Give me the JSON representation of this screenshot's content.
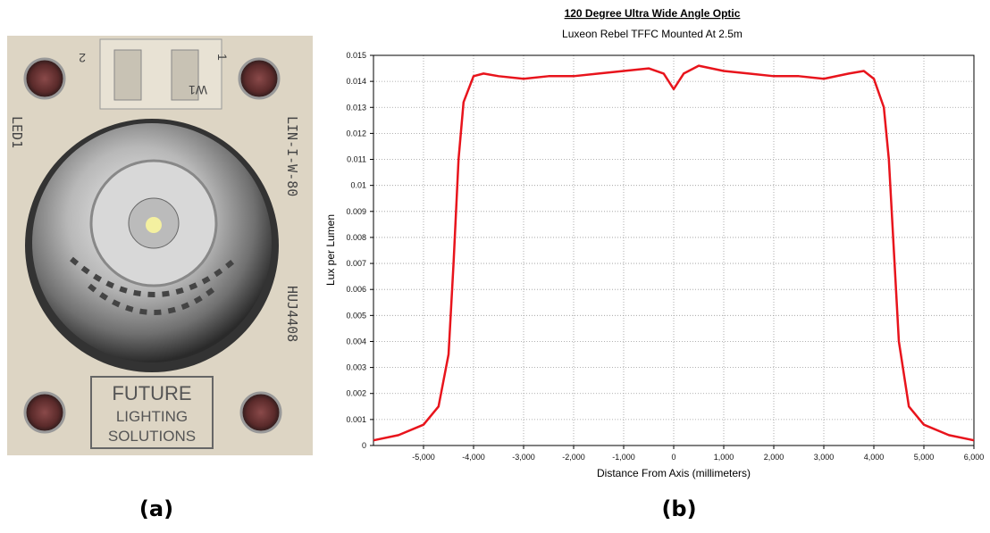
{
  "panel_labels": [
    "(a)",
    "(b)"
  ],
  "photo": {
    "silkscreen": [
      "LED1",
      "LIN-I-W-80",
      "HUJ4408",
      "2",
      "1",
      "W1"
    ],
    "logo": [
      "FUTURE",
      "LIGHTING",
      "SOLUTIONS"
    ]
  },
  "chart_data": {
    "type": "line",
    "title": "120 Degree Ultra Wide Angle Optic",
    "subtitle": "Luxeon Rebel TFFC Mounted At 2.5m",
    "x_label": "Distance From Axis (millimeters)",
    "y_label": "Lux per Lumen",
    "x": [
      -6000,
      -5500,
      -5000,
      -4700,
      -4500,
      -4400,
      -4300,
      -4200,
      -4000,
      -3800,
      -3500,
      -3000,
      -2500,
      -2000,
      -1500,
      -1000,
      -500,
      -200,
      0,
      200,
      500,
      1000,
      1500,
      2000,
      2500,
      3000,
      3500,
      3800,
      4000,
      4200,
      4300,
      4400,
      4500,
      4700,
      5000,
      5500,
      6000
    ],
    "series": [
      {
        "color": "#e8141c",
        "values": [
          0.0002,
          0.0004,
          0.0008,
          0.0015,
          0.0035,
          0.007,
          0.011,
          0.0132,
          0.0142,
          0.0143,
          0.0142,
          0.0141,
          0.0142,
          0.0142,
          0.0143,
          0.0144,
          0.0145,
          0.0143,
          0.0137,
          0.0143,
          0.0146,
          0.0144,
          0.0143,
          0.0142,
          0.0142,
          0.0141,
          0.0143,
          0.0144,
          0.0141,
          0.013,
          0.011,
          0.0075,
          0.004,
          0.0015,
          0.0008,
          0.0004,
          0.0002
        ]
      }
    ],
    "xlim": [
      -6000,
      6000
    ],
    "xticks": [
      {
        "value": -5000,
        "label": "-5,000"
      },
      {
        "value": -4000,
        "label": "-4,000"
      },
      {
        "value": -3000,
        "label": "-3,000"
      },
      {
        "value": -2000,
        "label": "-2,000"
      },
      {
        "value": -1000,
        "label": "-1,000"
      },
      0,
      {
        "value": 1000,
        "label": "1,000"
      },
      {
        "value": 2000,
        "label": "2,000"
      },
      {
        "value": 3000,
        "label": "3,000"
      },
      {
        "value": 4000,
        "label": "4,000"
      },
      {
        "value": 5000,
        "label": "5,000"
      },
      {
        "value": 6000,
        "label": "6,000"
      }
    ],
    "ylim": [
      0,
      0.015
    ],
    "yticks": [
      0,
      0.001,
      0.002,
      0.003,
      0.004,
      0.005,
      0.006,
      0.007,
      0.008,
      0.009,
      0.01,
      0.011,
      0.012,
      0.013,
      0.014,
      0.015
    ],
    "grid": true
  }
}
